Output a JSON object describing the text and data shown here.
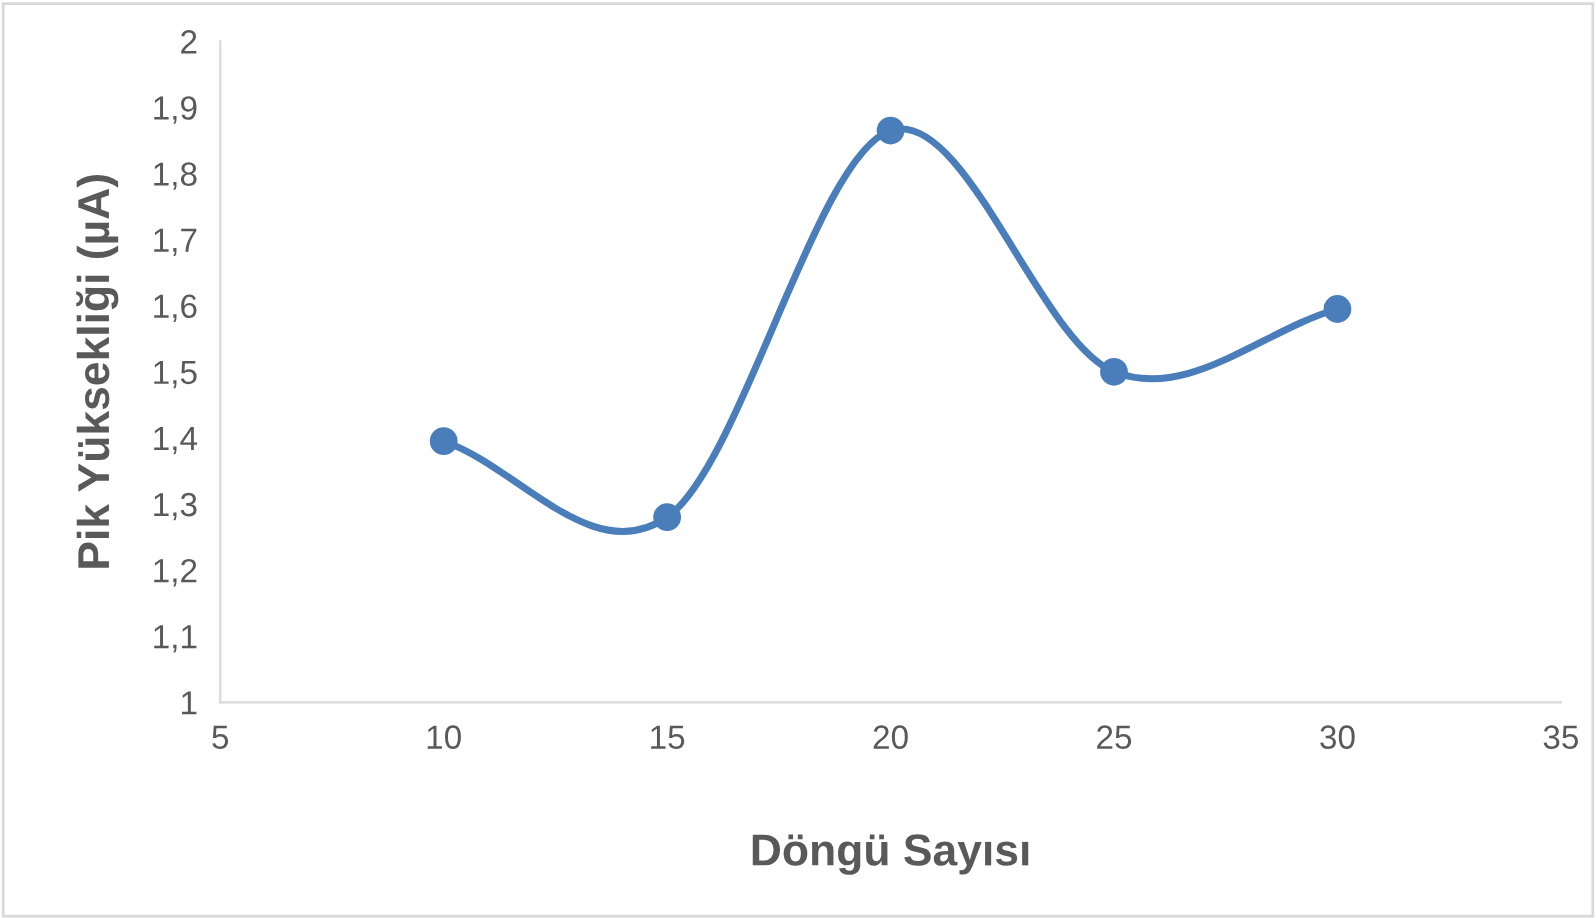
{
  "chart_data": {
    "type": "line",
    "xlabel": "Döngü Sayısı",
    "ylabel": "Pik Yüksekliği (µA)",
    "x": [
      10,
      15,
      20,
      25,
      30
    ],
    "series": [
      {
        "color": "#4a7ebb",
        "values": [
          1.395,
          1.28,
          1.865,
          1.5,
          1.595
        ]
      }
    ],
    "xlim": [
      5,
      35
    ],
    "xticks": [
      5,
      10,
      15,
      20,
      25,
      30,
      35
    ],
    "ylim": [
      1,
      2
    ],
    "yticks": [
      1,
      {
        "value": 1.1,
        "label": "1,1"
      },
      {
        "value": 1.2,
        "label": "1,2"
      },
      {
        "value": 1.3,
        "label": "1,3"
      },
      {
        "value": 1.4,
        "label": "1,4"
      },
      {
        "value": 1.5,
        "label": "1,5"
      },
      {
        "value": 1.6,
        "label": "1,6"
      },
      {
        "value": 1.7,
        "label": "1,7"
      },
      {
        "value": 1.8,
        "label": "1,8"
      },
      {
        "value": 1.9,
        "label": "1,9"
      },
      2
    ],
    "marker": "circle",
    "line_style": "solid",
    "grid": false,
    "legend": false
  }
}
